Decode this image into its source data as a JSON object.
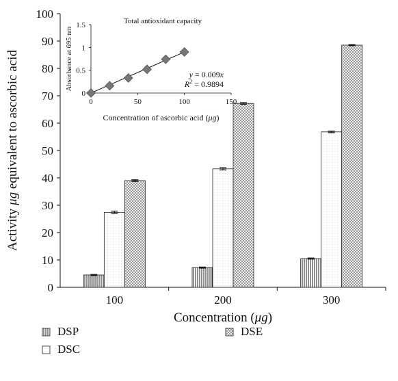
{
  "chart_data": [
    {
      "type": "bar",
      "xlabel_prefix": "Concentration (",
      "xlabel_unit": "μg",
      "xlabel_suffix": ")",
      "ylabel_prefix": "Activity ",
      "ylabel_unit": "μg",
      "ylabel_suffix": " equivalent to ascorbic acid",
      "categories": [
        "100",
        "200",
        "300"
      ],
      "ylim": [
        0,
        100
      ],
      "yticks": [
        0,
        10,
        20,
        30,
        40,
        50,
        60,
        70,
        80,
        90,
        100
      ],
      "grid": false,
      "legend_position": "bottom",
      "series": [
        {
          "name": "DSP",
          "values": [
            4.5,
            7.2,
            10.5
          ],
          "errors": [
            0.2,
            0.2,
            0.2
          ],
          "pattern": "vertical-lines"
        },
        {
          "name": "DSC",
          "values": [
            27.4,
            43.3,
            56.8
          ],
          "errors": [
            0.4,
            0.4,
            0.3
          ],
          "pattern": "dots"
        },
        {
          "name": "DSE",
          "values": [
            39.0,
            67.2,
            88.5
          ],
          "errors": [
            0.3,
            0.3,
            0.2
          ],
          "pattern": "crosshatch"
        }
      ]
    },
    {
      "type": "scatter",
      "title": "Total antioxidant capacity",
      "xlabel_prefix": "Concentration of ascorbic acid (",
      "xlabel_unit": "μg",
      "xlabel_suffix": ")",
      "ylabel": "Absorbance at 695 nm",
      "xlim": [
        0,
        150
      ],
      "ylim": [
        0,
        1.5
      ],
      "xticks": [
        0,
        50,
        100,
        150
      ],
      "yticks": [
        0,
        0.5,
        1,
        1.5
      ],
      "ytick_labels": [
        "0",
        "0.5",
        "1",
        "1.5"
      ],
      "x": [
        0,
        20,
        40,
        60,
        80,
        100
      ],
      "y": [
        0.0,
        0.16,
        0.33,
        0.52,
        0.74,
        0.9
      ],
      "trendline_slope": 0.009,
      "equation": "y = 0.009x",
      "r2_label": "R",
      "r2_value": "= 0.9894"
    }
  ],
  "colors": {
    "marker": "#777777",
    "axis": "#111111"
  }
}
